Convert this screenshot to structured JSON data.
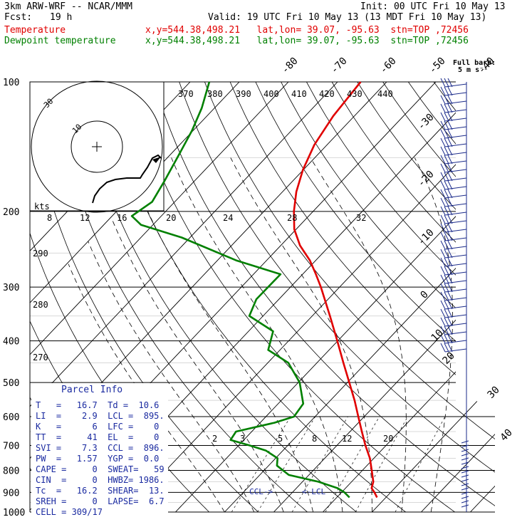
{
  "header": {
    "model": "3km ARW-WRF -- NCAR/MMM",
    "init": "Init: 00 UTC Fri 10 May 13",
    "fcst_label": "Fcst:",
    "fcst_value": "19 h",
    "valid": "Valid: 19 UTC Fri 10 May 13 (13 MDT Fri 10 May 13)",
    "temp_label": "Temperature",
    "temp_loc": "x,y=544.38,498.21   lat,lon= 39.07, -95.63  stn=TOP ,72456",
    "dew_label": "Dewpoint temperature",
    "dew_loc": "x,y=544.38,498.21   lat,lon= 39.07, -95.63  stn=TOP ,72456",
    "barb_label_line1": "Full barb:",
    "barb_label_line2": "5 m s⁻¹"
  },
  "colors": {
    "temperature": "#e00000",
    "dewpoint": "#008000",
    "barbs": "#1a2a8a",
    "parcel_text": "#1a2aa0",
    "hodograph": "#000000"
  },
  "pressure_ticks": [
    "100",
    "200",
    "300",
    "400",
    "500",
    "600",
    "700",
    "800",
    "900",
    "1000"
  ],
  "top_isotherm_labels": [
    "-80",
    "-70",
    "-60",
    "-50",
    "-40"
  ],
  "right_isotherm_labels": [
    "-30",
    "-20",
    "-10",
    "0",
    "10",
    "20",
    "30",
    "40"
  ],
  "theta_labels": [
    "370",
    "380",
    "390",
    "400",
    "410",
    "420",
    "430",
    "440",
    "290",
    "280",
    "270"
  ],
  "mixing_ratio_labels": [
    "2",
    "3",
    "5",
    "8",
    "12",
    "20"
  ],
  "hodograph": {
    "ring_labels": [
      "10",
      "30"
    ],
    "speed_labels": [
      "kts",
      "8",
      "12",
      "16",
      "20",
      "24",
      "28",
      "32"
    ]
  },
  "lcl_labels": {
    "ccl": "CCL->",
    "lcl": "<-LCL"
  },
  "parcel_info": {
    "title": "Parcel Info",
    "rows": [
      "T   =   16.7  Td =  10.6",
      "LI  =    2.9  LCL =  895.",
      "K   =      6  LFC =    0",
      "TT  =     41  EL  =    0",
      "SVI =    7.3  CCL =  896.",
      "PW  =   1.57  YGP =  0.0",
      "CAPE =     0  SWEAT=   59",
      "CIN  =     0  HWBZ= 1986.",
      "Tc  =   16.2  SHEAR=  13.",
      "SREH =     0  LAPSE=  6.7",
      "CELL = 309/17"
    ]
  },
  "chart_data": {
    "type": "line",
    "title": "",
    "xlabel": "",
    "ylabel": "",
    "x_unit": "degC (skewed)",
    "y_unit": "hPa",
    "ylim": [
      1000,
      100
    ],
    "y_scale": "log",
    "series": [
      {
        "name": "Temperature",
        "pressure": [
          925,
          900,
          880,
          850,
          800,
          750,
          700,
          650,
          600,
          550,
          500,
          450,
          400,
          350,
          300,
          280,
          260,
          250,
          240,
          220,
          200,
          180,
          160,
          140,
          120,
          100
        ],
        "values": [
          18.2,
          16.7,
          15.3,
          14.4,
          11.9,
          9.2,
          5.8,
          2.4,
          -1.2,
          -5.1,
          -9.6,
          -14.6,
          -20.1,
          -26.4,
          -33.8,
          -37.3,
          -41.2,
          -43.6,
          -46.1,
          -50.4,
          -53.9,
          -57.2,
          -60.1,
          -62.6,
          -64.3,
          -65.3
        ]
      },
      {
        "name": "Dewpoint temperature",
        "pressure": [
          925,
          900,
          880,
          850,
          820,
          780,
          750,
          720,
          700,
          680,
          650,
          620,
          600,
          560,
          500,
          450,
          420,
          380,
          350,
          320,
          280,
          260,
          230,
          215,
          205,
          190,
          170,
          150,
          130,
          115,
          100
        ],
        "values": [
          12.6,
          10.6,
          8.4,
          3.2,
          -4.1,
          -8.3,
          -9.6,
          -13.4,
          -17.8,
          -22.7,
          -23.2,
          -17.1,
          -14.3,
          -14.9,
          -19.7,
          -25.8,
          -32.4,
          -35.0,
          -42.8,
          -44.6,
          -44.5,
          -56.2,
          -71.7,
          -82.4,
          -86.0,
          -84.6,
          -86.1,
          -88.0,
          -90.2,
          -92.6,
          -96.1
        ]
      }
    ],
    "wind_barbs_levels": 32
  }
}
